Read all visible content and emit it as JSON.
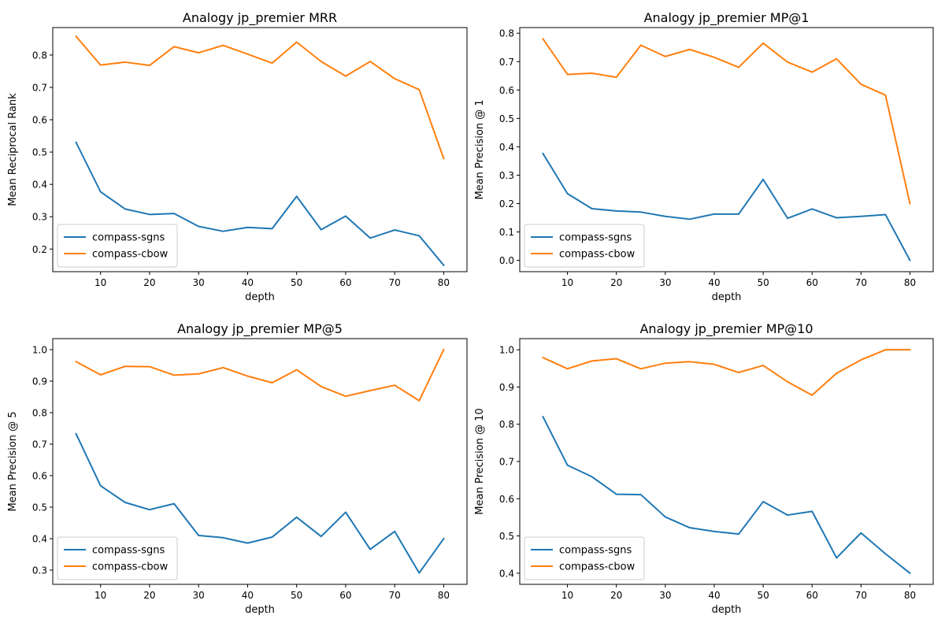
{
  "chart_data": [
    {
      "type": "line",
      "title": "Analogy jp_premier MRR",
      "xlabel": "depth",
      "ylabel": "Mean Reciprocal Rank",
      "x": [
        5,
        10,
        15,
        20,
        25,
        30,
        35,
        40,
        45,
        50,
        55,
        60,
        65,
        70,
        75,
        80
      ],
      "xlim": [
        0.25,
        84.75
      ],
      "ylim": [
        0.13,
        0.885
      ],
      "xticks": [
        10,
        20,
        30,
        40,
        50,
        60,
        70,
        80
      ],
      "yticks": [
        0.2,
        0.3,
        0.4,
        0.5,
        0.6,
        0.7,
        0.8
      ],
      "legend_position": "lower-left",
      "series": [
        {
          "name": "compass-sgns",
          "color": "#1f77b4",
          "values": [
            0.53,
            0.377,
            0.324,
            0.307,
            0.31,
            0.27,
            0.255,
            0.267,
            0.263,
            0.363,
            0.26,
            0.302,
            0.234,
            0.259,
            0.241,
            0.15
          ]
        },
        {
          "name": "compass-cbow",
          "color": "#ff7f0e",
          "values": [
            0.858,
            0.769,
            0.778,
            0.768,
            0.826,
            0.807,
            0.83,
            0.803,
            0.775,
            0.84,
            0.78,
            0.735,
            0.78,
            0.727,
            0.693,
            0.48
          ]
        }
      ]
    },
    {
      "type": "line",
      "title": "Analogy jp_premier MP@1",
      "xlabel": "depth",
      "ylabel": "Mean Precision @ 1",
      "x": [
        5,
        10,
        15,
        20,
        25,
        30,
        35,
        40,
        45,
        50,
        55,
        60,
        65,
        70,
        75,
        80
      ],
      "xlim": [
        0.25,
        84.75
      ],
      "ylim": [
        -0.04,
        0.82
      ],
      "xticks": [
        10,
        20,
        30,
        40,
        50,
        60,
        70,
        80
      ],
      "yticks": [
        0.0,
        0.1,
        0.2,
        0.3,
        0.4,
        0.5,
        0.6,
        0.7,
        0.8
      ],
      "legend_position": "lower-left",
      "series": [
        {
          "name": "compass-sgns",
          "color": "#1f77b4",
          "values": [
            0.376,
            0.235,
            0.182,
            0.174,
            0.17,
            0.155,
            0.145,
            0.163,
            0.163,
            0.285,
            0.148,
            0.181,
            0.15,
            0.155,
            0.161,
            0.0
          ]
        },
        {
          "name": "compass-cbow",
          "color": "#ff7f0e",
          "values": [
            0.78,
            0.655,
            0.659,
            0.645,
            0.758,
            0.718,
            0.743,
            0.715,
            0.68,
            0.765,
            0.698,
            0.663,
            0.71,
            0.62,
            0.582,
            0.2
          ]
        }
      ]
    },
    {
      "type": "line",
      "title": "Analogy jp_premier MP@5",
      "xlabel": "depth",
      "ylabel": "Mean Precision @ 5",
      "x": [
        5,
        10,
        15,
        20,
        25,
        30,
        35,
        40,
        45,
        50,
        55,
        60,
        65,
        70,
        75,
        80
      ],
      "xlim": [
        0.25,
        84.75
      ],
      "ylim": [
        0.255,
        1.035
      ],
      "xticks": [
        10,
        20,
        30,
        40,
        50,
        60,
        70,
        80
      ],
      "yticks": [
        0.3,
        0.4,
        0.5,
        0.6,
        0.7,
        0.8,
        0.9,
        1.0
      ],
      "legend_position": "lower-left",
      "series": [
        {
          "name": "compass-sgns",
          "color": "#1f77b4",
          "values": [
            0.733,
            0.568,
            0.515,
            0.492,
            0.511,
            0.41,
            0.403,
            0.386,
            0.405,
            0.468,
            0.407,
            0.484,
            0.366,
            0.423,
            0.291,
            0.4
          ]
        },
        {
          "name": "compass-cbow",
          "color": "#ff7f0e",
          "values": [
            0.962,
            0.92,
            0.947,
            0.946,
            0.919,
            0.923,
            0.943,
            0.916,
            0.895,
            0.936,
            0.883,
            0.852,
            0.87,
            0.887,
            0.838,
            1.0
          ]
        }
      ]
    },
    {
      "type": "line",
      "title": "Analogy jp_premier MP@10",
      "xlabel": "depth",
      "ylabel": "Mean Precision @ 10",
      "x": [
        5,
        10,
        15,
        20,
        25,
        30,
        35,
        40,
        45,
        50,
        55,
        60,
        65,
        70,
        75,
        80
      ],
      "xlim": [
        0.25,
        84.75
      ],
      "ylim": [
        0.37,
        1.03
      ],
      "xticks": [
        10,
        20,
        30,
        40,
        50,
        60,
        70,
        80
      ],
      "yticks": [
        0.4,
        0.5,
        0.6,
        0.7,
        0.8,
        0.9,
        1.0
      ],
      "legend_position": "lower-left",
      "series": [
        {
          "name": "compass-sgns",
          "color": "#1f77b4",
          "values": [
            0.82,
            0.69,
            0.659,
            0.612,
            0.611,
            0.551,
            0.522,
            0.512,
            0.505,
            0.592,
            0.556,
            0.566,
            0.441,
            0.508,
            0.452,
            0.4
          ]
        },
        {
          "name": "compass-cbow",
          "color": "#ff7f0e",
          "values": [
            0.979,
            0.949,
            0.97,
            0.976,
            0.949,
            0.964,
            0.968,
            0.961,
            0.939,
            0.958,
            0.914,
            0.878,
            0.937,
            0.973,
            1.0,
            1.0
          ]
        }
      ]
    }
  ]
}
